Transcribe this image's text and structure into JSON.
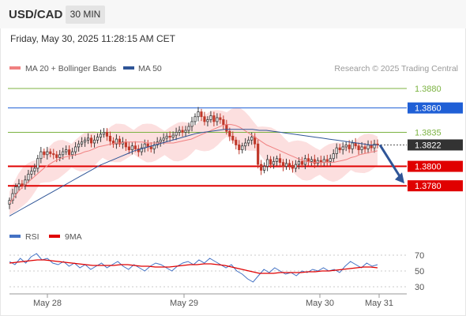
{
  "header": {
    "symbol": "USD/CAD",
    "timeframe": "30 MIN",
    "datetime": "Friday, May 30, 2025 11:28:15 AM CET"
  },
  "legend": {
    "ma20": "MA 20 + Bollinger Bands",
    "ma50": "MA 50",
    "ma20_color": "#f08080",
    "ma50_color": "#2f5597",
    "rsi": "RSI",
    "rsi9ma": "9MA",
    "rsi_color": "#4472c4",
    "rsi9ma_color": "#e00000"
  },
  "watermark": "Research © 2025 Trading Central",
  "chart_data": [
    {
      "type": "candlestick",
      "ylim": [
        1.3742,
        1.3893
      ],
      "x_labels": [
        "May 28",
        "May 29",
        "May 30",
        "May 31"
      ],
      "levels": [
        {
          "value": 1.388,
          "label": "1.3880",
          "kind": "target",
          "color": "#7cb342"
        },
        {
          "value": 1.386,
          "label": "1.3860",
          "kind": "resistance",
          "color": "#1f5fd6"
        },
        {
          "value": 1.3835,
          "label": "1.3835",
          "kind": "target",
          "color": "#7cb342"
        },
        {
          "value": 1.3822,
          "label": "1.3822",
          "kind": "last",
          "color": "#333333"
        },
        {
          "value": 1.38,
          "label": "1.3800",
          "kind": "support",
          "color": "#e00000"
        },
        {
          "value": 1.378,
          "label": "1.3780",
          "kind": "support",
          "color": "#e00000"
        }
      ],
      "forecast": {
        "from": 1.3822,
        "to": 1.378,
        "color": "#2f5597"
      },
      "series": [
        {
          "name": "price",
          "values": [
            1.3765,
            1.3772,
            1.3779,
            1.3782,
            1.3781,
            1.3786,
            1.3792,
            1.3795,
            1.3798,
            1.3808,
            1.3815,
            1.3812,
            1.3815,
            1.3813,
            1.3812,
            1.3809,
            1.3812,
            1.3815,
            1.3817,
            1.3812,
            1.3815,
            1.382,
            1.3823,
            1.3825,
            1.3827,
            1.3829,
            1.3824,
            1.3827,
            1.383,
            1.3833,
            1.3835,
            1.3831,
            1.3826,
            1.3823,
            1.3828,
            1.3823,
            1.3825,
            1.382,
            1.3817,
            1.3821,
            1.3818,
            1.3815,
            1.3819,
            1.3823,
            1.382,
            1.3818,
            1.3822,
            1.3825,
            1.3827,
            1.3829,
            1.3831,
            1.383,
            1.3832,
            1.3835,
            1.3837,
            1.3835,
            1.3837,
            1.3841,
            1.3846,
            1.3851,
            1.3856,
            1.3851,
            1.3846,
            1.3848,
            1.3852,
            1.3846,
            1.385,
            1.3848,
            1.3843,
            1.3836,
            1.3831,
            1.3827,
            1.3822,
            1.3817,
            1.3821,
            1.3824,
            1.3827,
            1.383,
            1.3823,
            1.3802,
            1.3796,
            1.38,
            1.3807,
            1.3802,
            1.3805,
            1.3808,
            1.3804,
            1.38,
            1.3803,
            1.3801,
            1.3798,
            1.3802,
            1.3805,
            1.3802,
            1.3808,
            1.3805,
            1.3807,
            1.3803,
            1.3806,
            1.3804,
            1.3807,
            1.3805,
            1.3808,
            1.3813,
            1.3819,
            1.3817,
            1.382,
            1.3822,
            1.3818,
            1.3824,
            1.3821,
            1.3817,
            1.382,
            1.3818,
            1.3822,
            1.3819,
            1.3823,
            1.3822
          ]
        },
        {
          "name": "MA 20",
          "values": [
            1.3762,
            1.3768,
            1.3774,
            1.3779,
            1.3783,
            1.3787,
            1.3791,
            1.3795,
            1.3799,
            1.3802,
            1.3805,
            1.3807,
            1.3809,
            1.381,
            1.3811,
            1.3812,
            1.3813,
            1.3815,
            1.3816,
            1.3818,
            1.382,
            1.3821,
            1.3822,
            1.3823,
            1.3824,
            1.3824,
            1.3825,
            1.3825,
            1.3825,
            1.3825,
            1.3825,
            1.3824,
            1.3824,
            1.3824,
            1.3824,
            1.3824,
            1.3824,
            1.3824,
            1.3825,
            1.3826,
            1.3827,
            1.3828,
            1.383,
            1.3832,
            1.3834,
            1.3836,
            1.3838,
            1.384,
            1.3842,
            1.3843,
            1.3843,
            1.3842,
            1.384,
            1.3837,
            1.3834,
            1.3831,
            1.3828,
            1.3825,
            1.3822,
            1.382,
            1.3818,
            1.3816,
            1.3814,
            1.3812,
            1.381,
            1.3808,
            1.3806,
            1.3805,
            1.3804,
            1.3804,
            1.3804,
            1.3804,
            1.3804,
            1.3804,
            1.3805,
            1.3806,
            1.3807,
            1.3809,
            1.381,
            1.3812,
            1.3813,
            1.3814,
            1.3815,
            1.3816
          ]
        },
        {
          "name": "MA 50",
          "values": [
            1.3749,
            1.3753,
            1.3757,
            1.3761,
            1.3765,
            1.3769,
            1.3773,
            1.3777,
            1.3781,
            1.3785,
            1.3789,
            1.3793,
            1.3797,
            1.3801,
            1.3804,
            1.3807,
            1.381,
            1.3813,
            1.3816,
            1.3818,
            1.382,
            1.3822,
            1.3824,
            1.3826,
            1.3828,
            1.383,
            1.3832,
            1.3834,
            1.3835,
            1.3836,
            1.3837,
            1.3838,
            1.3838,
            1.3838,
            1.3838,
            1.3838,
            1.3837,
            1.3837,
            1.3836,
            1.3835,
            1.3834,
            1.3833,
            1.3832,
            1.3831,
            1.383,
            1.3829,
            1.3828,
            1.3827,
            1.3826,
            1.3825,
            1.3824,
            1.3823,
            1.3822,
            1.3822
          ]
        }
      ]
    },
    {
      "type": "line",
      "ylim": [
        25,
        80
      ],
      "y_ticks": [
        70,
        50,
        30
      ],
      "x_labels": [
        "May 28",
        "May 29",
        "May 30",
        "May 31"
      ],
      "series": [
        {
          "name": "RSI",
          "values": [
            62,
            58,
            66,
            60,
            68,
            72,
            64,
            66,
            60,
            58,
            62,
            56,
            60,
            54,
            58,
            52,
            56,
            60,
            54,
            58,
            62,
            56,
            52,
            58,
            54,
            50,
            56,
            60,
            58,
            54,
            50,
            56,
            60,
            62,
            58,
            64,
            60,
            66,
            62,
            58,
            54,
            58,
            50,
            46,
            40,
            36,
            44,
            52,
            48,
            54,
            50,
            46,
            48,
            44,
            50,
            48,
            52,
            50,
            54,
            50,
            52,
            48,
            56,
            62,
            58,
            54,
            60,
            56,
            58
          ]
        },
        {
          "name": "9MA",
          "values": [
            60,
            61,
            62,
            63,
            64,
            64,
            63,
            62,
            61,
            60,
            59,
            58,
            57,
            57,
            57,
            57,
            58,
            58,
            57,
            56,
            56,
            55,
            55,
            55,
            56,
            57,
            58,
            58,
            59,
            59,
            58,
            57,
            55,
            53,
            51,
            49,
            47,
            47,
            47,
            48,
            48,
            48,
            48,
            49,
            49,
            50,
            50,
            51,
            52,
            53,
            54,
            55,
            55,
            54
          ]
        }
      ]
    }
  ]
}
